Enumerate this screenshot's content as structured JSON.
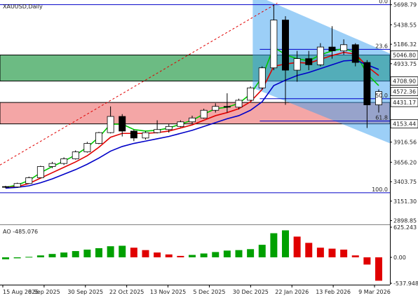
{
  "main_pane": {
    "symbol_label": "XAUUSD,Daily",
    "y_ticks": [
      "5698.79",
      "5438.55",
      "5186.32",
      "4933.75",
      "4681.22",
      "4431.17",
      "4153.44",
      "3916.56",
      "3656.20",
      "3403.75",
      "3151.30",
      "2898.85"
    ],
    "price_tags": [
      {
        "text": "5046.80",
        "bg": "#ffffff",
        "fg": "#000000",
        "border": "#000000"
      },
      {
        "text": "4708.90",
        "bg": "#ffffff",
        "fg": "#000000",
        "border": "#000000"
      },
      {
        "text": "4572.36",
        "bg": "#ffffff",
        "fg": "#000000",
        "border": "#000000"
      },
      {
        "text": "4431.17",
        "bg": "#ffffff",
        "fg": "#000000",
        "border": "#000000"
      },
      {
        "text": "4153.44",
        "bg": "#ffffff",
        "fg": "#000000",
        "border": "#000000"
      }
    ],
    "fib_labels": [
      "0.0",
      "23.6",
      "50.0",
      "61.8",
      "100.0"
    ]
  },
  "ao_pane": {
    "label": "AO -485.076",
    "y_ticks": [
      "625.243",
      "0.00",
      "-537.948"
    ]
  },
  "x_ticks": [
    "15 Aug 2025",
    "8 Sep 2025",
    "30 Sep 2025",
    "22 Oct 2025",
    "13 Nov 2025",
    "5 Dec 2025",
    "30 Dec 2025",
    "22 Jan 2026",
    "13 Feb 2026",
    "9 Mar 2026"
  ],
  "colors": {
    "bull_candle": "#ffffff",
    "bear_candle": "#000000",
    "ma_fast": "#00c800",
    "ma_mid": "#e00000",
    "ma_slow": "#0000c8",
    "green_zone": "#2e9e4f",
    "red_zone": "#f08080",
    "channel": "#3aa0f0",
    "ao_up": "#00a000",
    "ao_down": "#e00000",
    "fib_line": "#0000c8"
  },
  "zones": {
    "green_zone": [
      4708.9,
      5046.8
    ],
    "red_zone": [
      4153.44,
      4431.17
    ]
  },
  "chart_data": [
    {
      "type": "candlestick",
      "title": "XAUUSD,Daily",
      "ylim": [
        2850,
        5760
      ],
      "bars": [
        {
          "date": "15 Aug 2025",
          "o": 3340,
          "h": 3350,
          "l": 3320,
          "c": 3335
        },
        {
          "date": "22 Aug 2025",
          "o": 3335,
          "h": 3390,
          "l": 3325,
          "c": 3380
        },
        {
          "date": "29 Aug 2025",
          "o": 3380,
          "h": 3470,
          "l": 3375,
          "c": 3455
        },
        {
          "date": "5 Sep 2025",
          "o": 3455,
          "h": 3610,
          "l": 3450,
          "c": 3600
        },
        {
          "date": "12 Sep 2025",
          "o": 3600,
          "h": 3660,
          "l": 3580,
          "c": 3640
        },
        {
          "date": "19 Sep 2025",
          "o": 3640,
          "h": 3720,
          "l": 3620,
          "c": 3700
        },
        {
          "date": "26 Sep 2025",
          "o": 3700,
          "h": 3810,
          "l": 3690,
          "c": 3790
        },
        {
          "date": "3 Oct 2025",
          "o": 3790,
          "h": 3920,
          "l": 3780,
          "c": 3900
        },
        {
          "date": "10 Oct 2025",
          "o": 3900,
          "h": 4050,
          "l": 3890,
          "c": 4040
        },
        {
          "date": "17 Oct 2025",
          "o": 4040,
          "h": 4380,
          "l": 4030,
          "c": 4250
        },
        {
          "date": "24 Oct 2025",
          "o": 4250,
          "h": 4280,
          "l": 3990,
          "c": 4060
        },
        {
          "date": "31 Oct 2025",
          "o": 4060,
          "h": 4080,
          "l": 3930,
          "c": 3970
        },
        {
          "date": "7 Nov 2025",
          "o": 3970,
          "h": 4060,
          "l": 3950,
          "c": 4040
        },
        {
          "date": "14 Nov 2025",
          "o": 4040,
          "h": 4200,
          "l": 4030,
          "c": 4080
        },
        {
          "date": "21 Nov 2025",
          "o": 4080,
          "h": 4150,
          "l": 4040,
          "c": 4120
        },
        {
          "date": "28 Nov 2025",
          "o": 4120,
          "h": 4200,
          "l": 4110,
          "c": 4180
        },
        {
          "date": "5 Dec 2025",
          "o": 4180,
          "h": 4260,
          "l": 4160,
          "c": 4230
        },
        {
          "date": "12 Dec 2025",
          "o": 4230,
          "h": 4350,
          "l": 4220,
          "c": 4330
        },
        {
          "date": "19 Dec 2025",
          "o": 4330,
          "h": 4420,
          "l": 4300,
          "c": 4380
        },
        {
          "date": "26 Dec 2025",
          "o": 4380,
          "h": 4550,
          "l": 4300,
          "c": 4370
        },
        {
          "date": "2 Jan 2026",
          "o": 4370,
          "h": 4480,
          "l": 4340,
          "c": 4460
        },
        {
          "date": "9 Jan 2026",
          "o": 4460,
          "h": 4640,
          "l": 4450,
          "c": 4620
        },
        {
          "date": "16 Jan 2026",
          "o": 4620,
          "h": 4900,
          "l": 4600,
          "c": 4880
        },
        {
          "date": "23 Jan 2026",
          "o": 4880,
          "h": 5700,
          "l": 4850,
          "c": 5500
        },
        {
          "date": "30 Jan 2026",
          "o": 5500,
          "h": 5550,
          "l": 4400,
          "c": 4850
        },
        {
          "date": "6 Feb 2026",
          "o": 4850,
          "h": 5100,
          "l": 4700,
          "c": 5000
        },
        {
          "date": "13 Feb 2026",
          "o": 5000,
          "h": 5100,
          "l": 4850,
          "c": 4920
        },
        {
          "date": "20 Feb 2026",
          "o": 4920,
          "h": 5200,
          "l": 4900,
          "c": 5150
        },
        {
          "date": "27 Feb 2026",
          "o": 5150,
          "h": 5420,
          "l": 5000,
          "c": 5100
        },
        {
          "date": "6 Mar 2026",
          "o": 5100,
          "h": 5250,
          "l": 5050,
          "c": 5180
        },
        {
          "date": "13 Mar 2026",
          "o": 5180,
          "h": 5200,
          "l": 4900,
          "c": 4950
        },
        {
          "date": "20 Mar 2026",
          "o": 4950,
          "h": 4980,
          "l": 4100,
          "c": 4400
        },
        {
          "date": "27 Mar 2026",
          "o": 4400,
          "h": 4600,
          "l": 4300,
          "c": 4572
        }
      ],
      "series": [
        {
          "values": [
            3330,
            3360,
            3420,
            3520,
            3600,
            3670,
            3750,
            3850,
            3980,
            4150,
            4150,
            4080,
            4060,
            4070,
            4100,
            4150,
            4200,
            4280,
            4350,
            4370,
            4420,
            4540,
            4760,
            5150,
            5050,
            5000,
            4970,
            5050,
            5100,
            5130,
            5080,
            4800,
            4650
          ]
        },
        {
          "values": [
            3325,
            3340,
            3380,
            3450,
            3520,
            3590,
            3660,
            3740,
            3850,
            3980,
            4030,
            4030,
            4030,
            4040,
            4060,
            4100,
            4140,
            4200,
            4260,
            4300,
            4350,
            4440,
            4600,
            4900,
            4930,
            4950,
            4940,
            4990,
            5040,
            5080,
            5060,
            4900,
            4780
          ]
        },
        {
          "values": [
            3320,
            3330,
            3350,
            3390,
            3440,
            3500,
            3560,
            3630,
            3710,
            3800,
            3860,
            3900,
            3930,
            3960,
            3990,
            4030,
            4070,
            4120,
            4170,
            4220,
            4260,
            4330,
            4440,
            4650,
            4720,
            4780,
            4820,
            4870,
            4920,
            4970,
            4980,
            4920,
            4860
          ]
        }
      ],
      "fibonacci": [
        {
          "level": "0.0",
          "price": 5700
        },
        {
          "level": "23.6",
          "price": 5120
        },
        {
          "level": "50.0",
          "price": 4480
        },
        {
          "level": "61.8",
          "price": 4190
        },
        {
          "level": "100.0",
          "price": 3260
        }
      ]
    },
    {
      "type": "bar",
      "title": "AO -485.076",
      "ylim": [
        -537.948,
        625.243
      ],
      "values": [
        -40,
        -20,
        10,
        40,
        70,
        100,
        130,
        160,
        190,
        230,
        240,
        200,
        150,
        100,
        60,
        30,
        50,
        80,
        110,
        140,
        150,
        170,
        260,
        500,
        560,
        430,
        300,
        200,
        180,
        160,
        40,
        -150,
        -485.076
      ]
    }
  ]
}
